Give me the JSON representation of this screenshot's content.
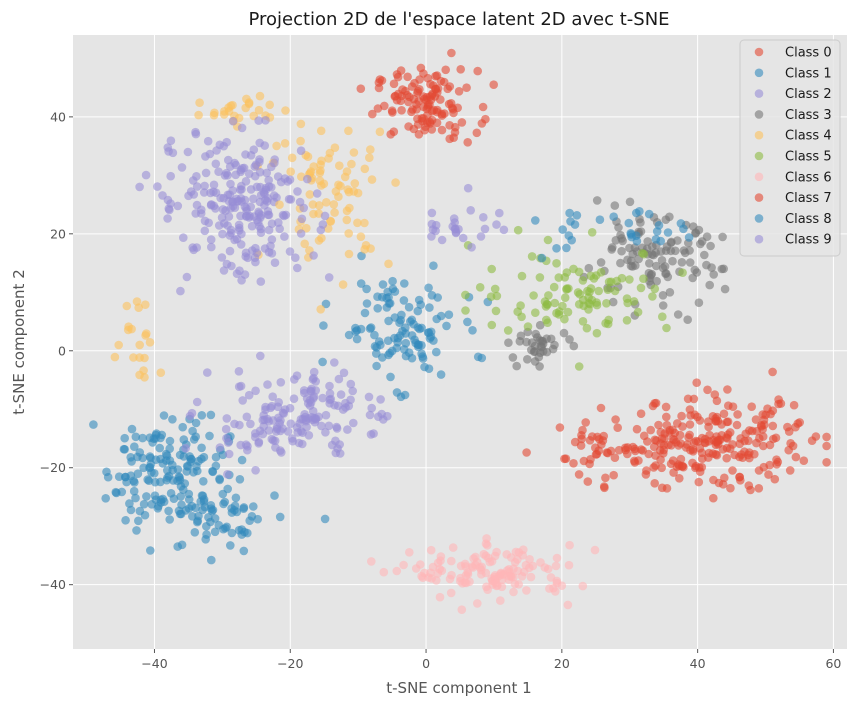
{
  "chart_data": {
    "type": "scatter",
    "title": "Projection 2D de l'espace latent 2D avec t-SNE",
    "xlabel": "t-SNE component 1",
    "ylabel": "t-SNE component 2",
    "xlim": [
      -52,
      62
    ],
    "ylim": [
      -51,
      54
    ],
    "xticks": [
      -40,
      -20,
      0,
      20,
      40,
      60
    ],
    "yticks": [
      -40,
      -20,
      0,
      20,
      40
    ],
    "xtick_labels": [
      "−40",
      "−20",
      "0",
      "20",
      "40",
      "60"
    ],
    "ytick_labels": [
      "−40",
      "−20",
      "0",
      "20",
      "40"
    ],
    "grid": true,
    "legend_position": "top-right",
    "background": "#e5e5e5",
    "series": [
      {
        "name": "Class 0",
        "color": "#e24a33",
        "clusters": [
          {
            "cx": 0,
            "cy": 42,
            "sx": 5,
            "sy": 4,
            "n": 120
          },
          {
            "cx": 27,
            "cy": -17,
            "sx": 5,
            "sy": 4,
            "n": 40
          }
        ]
      },
      {
        "name": "Class 1",
        "color": "#348abd",
        "clusters": [
          {
            "cx": -38,
            "cy": -20,
            "sx": 6,
            "sy": 6,
            "n": 150
          },
          {
            "cx": -4,
            "cy": 4,
            "sx": 6,
            "sy": 6,
            "n": 110
          }
        ]
      },
      {
        "name": "Class 2",
        "color": "#988ed5",
        "clusters": [
          {
            "cx": -22,
            "cy": -12,
            "sx": 8,
            "sy": 5,
            "n": 110
          },
          {
            "cx": -30,
            "cy": 26,
            "sx": 7,
            "sy": 7,
            "n": 80
          }
        ]
      },
      {
        "name": "Class 3",
        "color": "#777777",
        "clusters": [
          {
            "cx": 33,
            "cy": 15,
            "sx": 7,
            "sy": 5,
            "n": 110
          },
          {
            "cx": 17,
            "cy": 1,
            "sx": 3,
            "sy": 2,
            "n": 35
          }
        ]
      },
      {
        "name": "Class 4",
        "color": "#fbc15e",
        "clusters": [
          {
            "cx": -14,
            "cy": 27,
            "sx": 6,
            "sy": 8,
            "n": 85
          },
          {
            "cx": -27,
            "cy": 41,
            "sx": 5,
            "sy": 2,
            "n": 25
          },
          {
            "cx": -42,
            "cy": 3,
            "sx": 2,
            "sy": 5,
            "n": 20
          }
        ]
      },
      {
        "name": "Class 5",
        "color": "#8eba42",
        "clusters": [
          {
            "cx": 22,
            "cy": 10,
            "sx": 10,
            "sy": 5,
            "n": 100
          }
        ]
      },
      {
        "name": "Class 6",
        "color": "#ffb5b8",
        "clusters": [
          {
            "cx": 10,
            "cy": -38,
            "sx": 8,
            "sy": 3,
            "n": 130
          }
        ]
      },
      {
        "name": "Class 7",
        "color": "#e24a33",
        "clusters": [
          {
            "cx": 42,
            "cy": -16,
            "sx": 10,
            "sy": 5,
            "n": 230
          }
        ]
      },
      {
        "name": "Class 8",
        "color": "#348abd",
        "clusters": [
          {
            "cx": -31,
            "cy": -29,
            "sx": 6,
            "sy": 4,
            "n": 60
          },
          {
            "cx": 27,
            "cy": 20,
            "sx": 8,
            "sy": 3,
            "n": 30
          }
        ]
      },
      {
        "name": "Class 9",
        "color": "#988ed5",
        "clusters": [
          {
            "cx": -25,
            "cy": 25,
            "sx": 6,
            "sy": 8,
            "n": 150
          },
          {
            "cx": 5,
            "cy": 22,
            "sx": 4,
            "sy": 3,
            "n": 25
          },
          {
            "cx": -14,
            "cy": -10,
            "sx": 6,
            "sy": 5,
            "n": 50
          }
        ]
      }
    ]
  }
}
